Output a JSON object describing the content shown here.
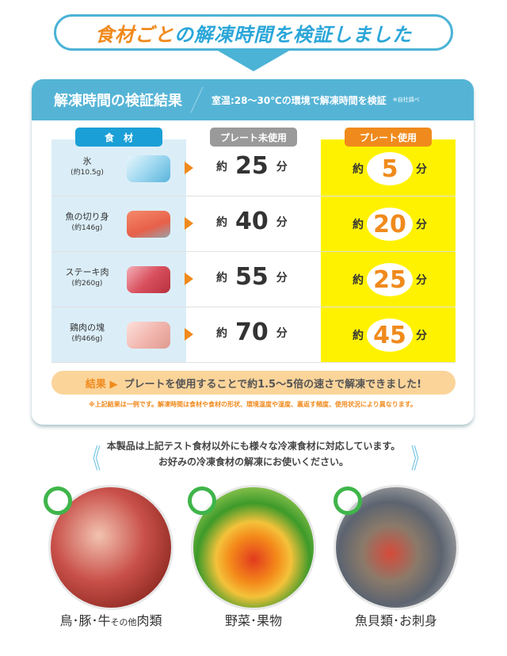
{
  "title": {
    "p1": "食材ごと",
    "p2": "の",
    "p3": "解凍時間",
    "p4": "を",
    "p5": "検証",
    "p6": "しました"
  },
  "card": {
    "heading": "解凍時間の検証結果",
    "condition": "室温:28〜30℃の環境で解凍時間を検証",
    "note": "※自社調べ"
  },
  "columns": {
    "food": "食　材",
    "without": "プレート未使用",
    "with": "プレート使用"
  },
  "approx": "約",
  "unit": "分",
  "rows": [
    {
      "name": "氷",
      "weight": "(約10.5g)",
      "without": "25",
      "with": "5",
      "icon": "ice-cube-icon"
    },
    {
      "name": "魚の切り身",
      "weight": "(約146g)",
      "without": "40",
      "with": "20",
      "icon": "salmon-fillet-icon"
    },
    {
      "name": "ステーキ肉",
      "weight": "(約260g)",
      "without": "55",
      "with": "25",
      "icon": "steak-icon"
    },
    {
      "name": "鶏肉の塊",
      "weight": "(約466g)",
      "without": "70",
      "with": "45",
      "icon": "chicken-icon"
    }
  ],
  "result": {
    "label": "結果 ▶",
    "text": "プレートを使用することで約1.5〜5倍の速さで解凍できました!"
  },
  "disclaimer": "※上記結果は一例です。解凍時間は食材や食材の形状、環境温度や湿度、裏返す頻度、使用状況により異なります。",
  "message": {
    "line1": "本製品は上記テスト食材以外にも様々な冷凍食材に対応しています。",
    "line2": "お好みの冷凍食材の解凍にお使いください。"
  },
  "categories": [
    {
      "label": "鳥･豚･牛",
      "small": "その他",
      "label2": "肉類"
    },
    {
      "label": "野菜･果物"
    },
    {
      "label": "魚貝類･お刺身"
    }
  ],
  "colors": {
    "blue": "#55b4d6",
    "orange": "#f08a1c",
    "yellow": "#fff200",
    "gray": "#9a9a9a"
  }
}
